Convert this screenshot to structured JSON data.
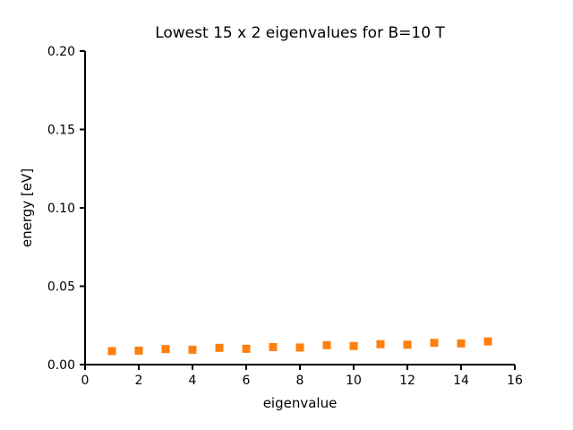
{
  "figure": {
    "background": "#ffffff",
    "axis_color": "#000000",
    "text_color": "#000000"
  },
  "chart_data": {
    "type": "scatter",
    "title": "Lowest 15 x 2 eigenvalues for B=10 T",
    "xlabel": "eigenvalue",
    "ylabel": "energy [eV]",
    "xlim": [
      0,
      16
    ],
    "ylim": [
      0.0,
      0.2
    ],
    "xticks": [
      0,
      2,
      4,
      6,
      8,
      10,
      12,
      14,
      16
    ],
    "xtick_labels": [
      "0",
      "2",
      "4",
      "6",
      "8",
      "10",
      "12",
      "14",
      "16"
    ],
    "yticks": [
      0.0,
      0.05,
      0.1,
      0.15,
      0.2
    ],
    "ytick_labels": [
      "0.00",
      "0.05",
      "0.10",
      "0.15",
      "0.20"
    ],
    "grid": false,
    "legend": null,
    "series": [
      {
        "name": "eigenvalues",
        "marker": "square",
        "color": "#ff7f0e",
        "x": [
          1,
          2,
          3,
          4,
          5,
          6,
          7,
          8,
          9,
          10,
          11,
          12,
          13,
          14,
          15
        ],
        "y": [
          0.0086,
          0.0089,
          0.0099,
          0.0095,
          0.0107,
          0.0101,
          0.0112,
          0.0109,
          0.0124,
          0.0119,
          0.013,
          0.0127,
          0.0139,
          0.0135,
          0.0148
        ]
      }
    ]
  }
}
